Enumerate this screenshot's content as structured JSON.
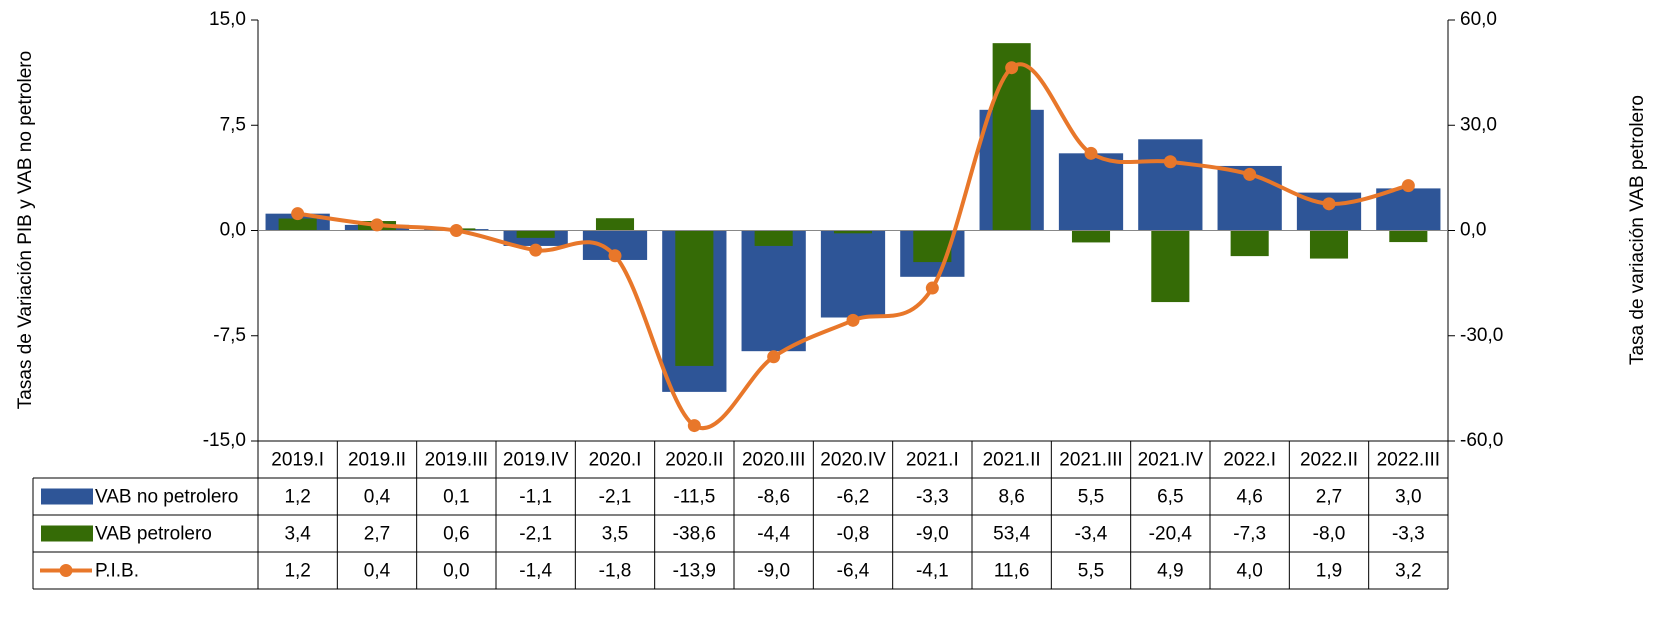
{
  "chart_data": {
    "type": "bar",
    "categories": [
      "2019.I",
      "2019.II",
      "2019.III",
      "2019.IV",
      "2020.I",
      "2020.II",
      "2020.III",
      "2020.IV",
      "2021.I",
      "2021.II",
      "2021.III",
      "2021.IV",
      "2022.I",
      "2022.II",
      "2022.III"
    ],
    "series": [
      {
        "name": "VAB no petrolero",
        "type": "bar",
        "color": "#2e5597",
        "values": [
          1.2,
          0.4,
          0.1,
          -1.1,
          -2.1,
          -11.5,
          -8.6,
          -6.2,
          -3.3,
          8.6,
          5.5,
          6.5,
          4.6,
          2.7,
          3.0
        ],
        "value_labels": [
          "1,2",
          "0,4",
          "0,1",
          "-1,1",
          "-2,1",
          "-11,5",
          "-8,6",
          "-6,2",
          "-3,3",
          "8,6",
          "5,5",
          "6,5",
          "4,6",
          "2,7",
          "3,0"
        ]
      },
      {
        "name": "VAB petrolero",
        "type": "bar",
        "axis": "y2",
        "color": "#356b06",
        "values": [
          3.4,
          2.7,
          0.6,
          -2.1,
          3.5,
          -38.6,
          -4.4,
          -0.8,
          -9.0,
          53.4,
          -3.4,
          -20.4,
          -7.3,
          -8.0,
          -3.3
        ],
        "value_labels": [
          "3,4",
          "2,7",
          "0,6",
          "-2,1",
          "3,5",
          "-38,6",
          "-4,4",
          "-0,8",
          "-9,0",
          "53,4",
          "-3,4",
          "-20,4",
          "-7,3",
          "-8,0",
          "-3,3"
        ]
      },
      {
        "name": "P.I.B.",
        "type": "line",
        "color": "#e8772a",
        "values": [
          1.2,
          0.4,
          0.0,
          -1.4,
          -1.8,
          -13.9,
          -9.0,
          -6.4,
          -4.1,
          11.6,
          5.5,
          4.9,
          4.0,
          1.9,
          3.2
        ],
        "value_labels": [
          "1,2",
          "0,4",
          "0,0",
          "-1,4",
          "-1,8",
          "-13,9",
          "-9,0",
          "-6,4",
          "-4,1",
          "11,6",
          "5,5",
          "4,9",
          "4,0",
          "1,9",
          "3,2"
        ]
      }
    ],
    "ylabel": "Tasas de Variación PIB y VAB no petrolero",
    "y2label": "Tasa de variación VAB petrolero",
    "ylim": [
      -15,
      15
    ],
    "yticks": [
      {
        "value": -15,
        "label": "-15,0"
      },
      {
        "value": -7.5,
        "label": "-7,5"
      },
      {
        "value": 0,
        "label": "0,0"
      },
      {
        "value": 7.5,
        "label": "7,5"
      },
      {
        "value": 15,
        "label": "15,0"
      }
    ],
    "y2lim": [
      -60,
      60
    ],
    "y2ticks": [
      {
        "value": -60,
        "label": "-60,0"
      },
      {
        "value": -30,
        "label": "-30,0"
      },
      {
        "value": 0,
        "label": "0,0"
      },
      {
        "value": 30,
        "label": "30,0"
      },
      {
        "value": 60,
        "label": "60,0"
      }
    ]
  }
}
